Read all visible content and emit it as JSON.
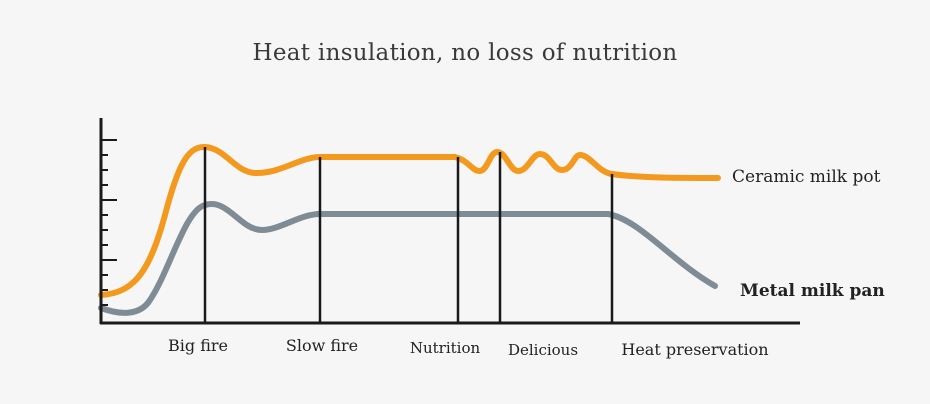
{
  "chart_data": {
    "type": "line",
    "title": "Heat insulation, no loss of nutrition",
    "xlabel": "",
    "ylabel": "",
    "categories": [
      "Big fire",
      "Slow fire",
      "Nutrition",
      "Delicious",
      "Heat preservation"
    ],
    "grid": false,
    "legend": "right, end of lines",
    "series": [
      {
        "name": "Ceramic milk pot",
        "color": "#f39a1e"
      },
      {
        "name": "Metal milk pan",
        "color": "#7f8c96"
      }
    ]
  },
  "colors": {
    "background": "#f6f6f6",
    "axis": "#1a1a1a",
    "ceramic": "#f39a1e",
    "metal": "#7f8c96"
  }
}
